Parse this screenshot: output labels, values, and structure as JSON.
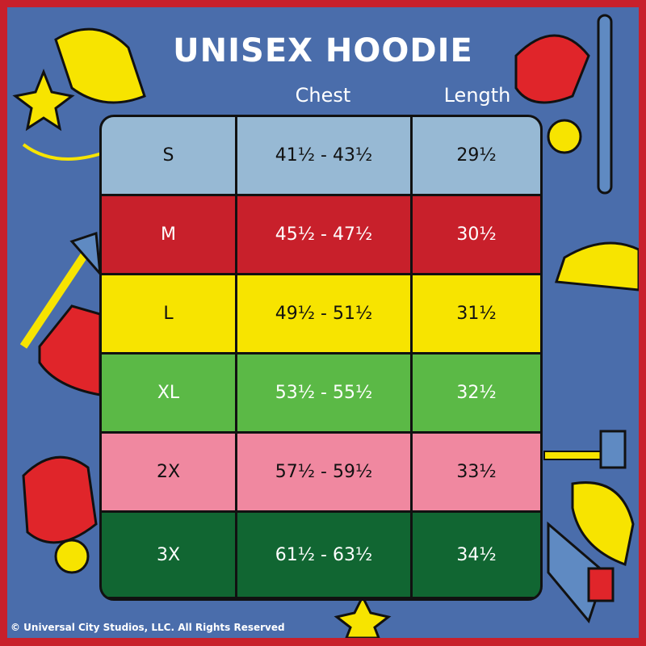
{
  "title": "UNISEX HOODIE",
  "columns": {
    "chest": "Chest",
    "length": "Length"
  },
  "rows": [
    {
      "size": "S",
      "chest": "41½ - 43½",
      "length": "29½",
      "bg": "#97b9d4",
      "fg": "#111111"
    },
    {
      "size": "M",
      "chest": "45½ - 47½",
      "length": "30½",
      "bg": "#c8202b",
      "fg": "#ffffff"
    },
    {
      "size": "L",
      "chest": "49½ - 51½",
      "length": "31½",
      "bg": "#f7e400",
      "fg": "#111111"
    },
    {
      "size": "XL",
      "chest": "53½ - 55½",
      "length": "32½",
      "bg": "#5bb946",
      "fg": "#ffffff"
    },
    {
      "size": "2X",
      "chest": "57½ - 59½",
      "length": "33½",
      "bg": "#f088a0",
      "fg": "#111111"
    },
    {
      "size": "3X",
      "chest": "61½ - 63½",
      "length": "34½",
      "bg": "#116632",
      "fg": "#ffffff"
    }
  ],
  "copyright": "© Universal City Studios, LLC. All Rights Reserved",
  "colors": {
    "border": "#c8202b",
    "background": "#4a6dab"
  }
}
